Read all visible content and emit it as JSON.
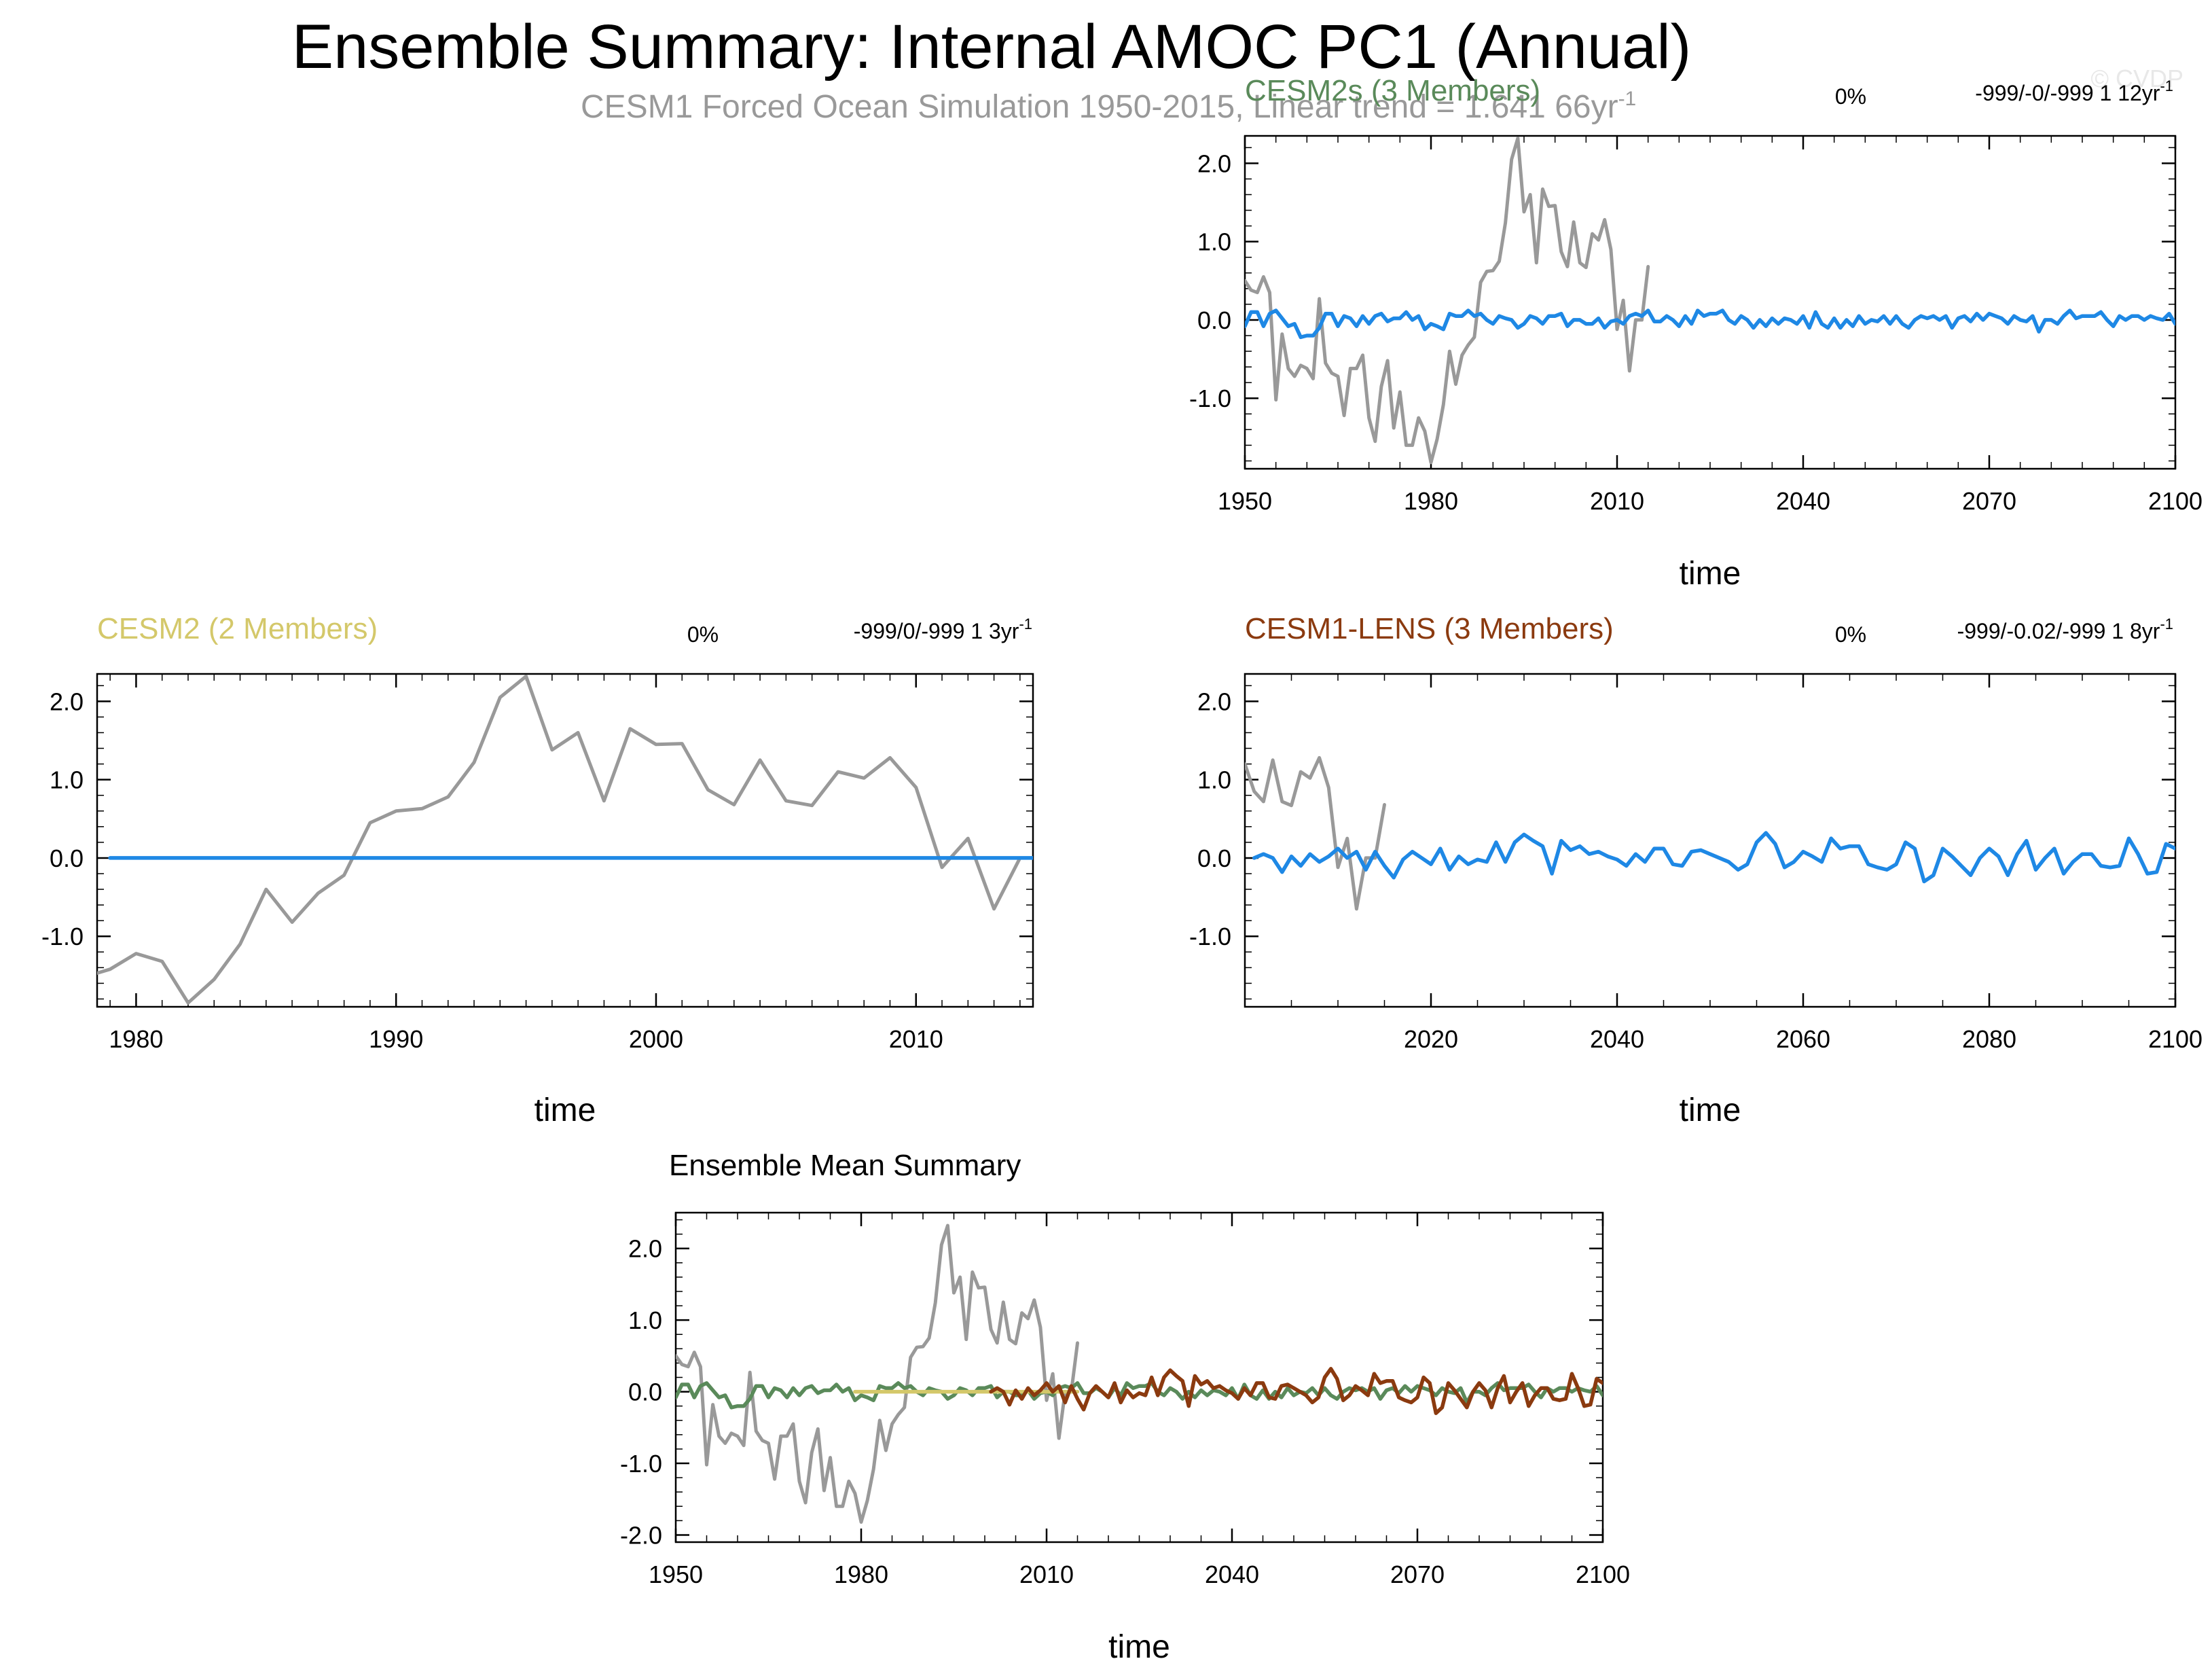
{
  "page": {
    "title": "Ensemble Summary: Internal AMOC PC1 (Annual)",
    "subtitle": "CESM1 Forced Ocean Simulation 1950-2015, Linear trend = 1.641 66yr",
    "subtitle_sup": "-1",
    "watermark": "© CVDP"
  },
  "colors": {
    "observed": "#999999",
    "cesm2s": "#1e88e5",
    "cesm2": "#1e88e5",
    "cesm1_lens": "#1e88e5",
    "mean_cesm2s": "#5a8a5a",
    "mean_cesm2": "#d4c86a",
    "mean_cesm1_lens": "#8b3a0f",
    "cesm2s_title": "#5a8a5a",
    "cesm2_title": "#d4c86a",
    "cesm1_lens_title": "#8b3a0f"
  },
  "chart_data": [
    {
      "id": "cesm2s",
      "type": "line",
      "title": "CESM2s (3 Members)",
      "pct": "0%",
      "stats": "-999/-0/-999 1 12yr",
      "stats_sup": "-1",
      "xlabel": "time",
      "xlim": [
        1950,
        2100
      ],
      "ylim": [
        -1.9,
        2.35
      ],
      "xticks": [
        "1950",
        "1980",
        "2010",
        "2040",
        "2070",
        "2100"
      ],
      "yticks": [
        "2.0",
        "1.0",
        "0.0",
        "-1.0"
      ],
      "series": [
        {
          "key": "observed",
          "x_start": 1950,
          "values": [
            0.5,
            0.38,
            0.35,
            0.55,
            0.35,
            -1.02,
            -0.18,
            -0.62,
            -0.72,
            -0.58,
            -0.62,
            -0.75,
            0.27,
            -0.55,
            -0.68,
            -0.72,
            -1.22,
            -0.62,
            -0.62,
            -0.45,
            -1.25,
            -1.55,
            -0.85,
            -0.52,
            -1.38,
            -0.92,
            -1.6,
            -1.6,
            -1.25,
            -1.42,
            -1.82,
            -1.52,
            -1.08,
            -0.4,
            -0.82,
            -0.45,
            -0.32,
            -0.22,
            0.48,
            0.62,
            0.63,
            0.75,
            1.24,
            2.05,
            2.32,
            1.38,
            1.6,
            0.73,
            1.67,
            1.45,
            1.46,
            0.87,
            0.68,
            1.25,
            0.73,
            0.67,
            1.1,
            1.02,
            1.28,
            0.9,
            -0.12,
            0.25,
            -0.65,
            0.0,
            0.0,
            0.68
          ]
        },
        {
          "key": "cesm2s",
          "x_start": 1950,
          "values": [
            -0.08,
            0.1,
            0.1,
            -0.08,
            0.08,
            0.12,
            0.02,
            -0.08,
            -0.05,
            -0.22,
            -0.2,
            -0.2,
            -0.1,
            0.08,
            0.08,
            -0.08,
            0.05,
            0.02,
            -0.08,
            0.05,
            -0.05,
            0.05,
            0.08,
            -0.02,
            0.02,
            0.02,
            0.1,
            0.0,
            0.05,
            -0.12,
            -0.05,
            -0.08,
            -0.12,
            0.08,
            0.05,
            0.05,
            0.12,
            0.05,
            0.08,
            0.0,
            -0.05,
            0.05,
            0.02,
            0.0,
            -0.1,
            -0.05,
            0.05,
            0.02,
            -0.05,
            0.05,
            0.05,
            0.08,
            -0.08,
            0.0,
            0.0,
            -0.05,
            -0.05,
            0.02,
            -0.1,
            -0.02,
            0.0,
            -0.05,
            0.05,
            0.08,
            0.05,
            0.12,
            -0.02,
            -0.02,
            0.05,
            0.0,
            -0.08,
            0.05,
            -0.05,
            0.12,
            0.05,
            0.08,
            0.08,
            0.12,
            0.0,
            -0.05,
            0.05,
            0.0,
            -0.1,
            0.0,
            -0.08,
            0.02,
            -0.05,
            0.02,
            0.0,
            -0.05,
            0.05,
            -0.1,
            0.1,
            -0.05,
            -0.1,
            0.02,
            -0.1,
            0.0,
            -0.08,
            0.05,
            -0.05,
            0.0,
            -0.02,
            0.05,
            -0.05,
            0.05,
            -0.05,
            -0.1,
            0.0,
            0.05,
            0.02,
            0.05,
            0.0,
            0.05,
            -0.1,
            0.02,
            0.05,
            -0.02,
            0.08,
            0.0,
            0.08,
            0.05,
            0.02,
            -0.05,
            0.05,
            0.0,
            -0.02,
            0.05,
            -0.15,
            0.0,
            0.0,
            -0.05,
            0.05,
            0.12,
            0.02,
            0.05,
            0.05,
            0.05,
            0.1,
            0.0,
            -0.08,
            0.05,
            0.0,
            0.05,
            0.05,
            0.0,
            0.05,
            0.02,
            0.0,
            0.08,
            -0.05,
            0.0,
            0.1,
            0.15,
            0.02
          ]
        }
      ]
    },
    {
      "id": "cesm2",
      "type": "line",
      "title": "CESM2 (2 Members)",
      "pct": "0%",
      "stats": "-999/0/-999 1 3yr",
      "stats_sup": "-1",
      "xlabel": "time",
      "xlim": [
        1978.5,
        2014.5
      ],
      "ylim": [
        -1.9,
        2.35
      ],
      "xticks": [
        "1980",
        "1990",
        "2000",
        "2010"
      ],
      "yticks": [
        "2.0",
        "1.0",
        "0.0",
        "-1.0"
      ],
      "series": [
        {
          "key": "observed",
          "x_start": 1978,
          "values": [
            -1.52,
            -1.42,
            -1.22,
            -1.32,
            -1.85,
            -1.55,
            -1.1,
            -0.4,
            -0.82,
            -0.45,
            -0.22,
            0.45,
            0.6,
            0.63,
            0.78,
            1.22,
            2.05,
            2.32,
            1.38,
            1.6,
            0.73,
            1.65,
            1.45,
            1.46,
            0.87,
            0.68,
            1.25,
            0.73,
            0.67,
            1.1,
            1.02,
            1.28,
            0.9,
            -0.12,
            0.25,
            -0.65,
            0.0,
            0.0,
            0.68
          ]
        },
        {
          "key": "cesm2",
          "x_start": 1979,
          "values": [
            0,
            0,
            0,
            0,
            0,
            0,
            0,
            0,
            0,
            0,
            0,
            0,
            0,
            0,
            0,
            0,
            0,
            0,
            0,
            0,
            0,
            0,
            0,
            0,
            0,
            0,
            0,
            0,
            0,
            0,
            0,
            0,
            0,
            0,
            0,
            0,
            0
          ]
        }
      ]
    },
    {
      "id": "cesm1_lens",
      "type": "line",
      "title": "CESM1-LENS (3 Members)",
      "pct": "0%",
      "stats": "-999/-0.02/-999 1 8yr",
      "stats_sup": "-1",
      "xlabel": "time",
      "xlim": [
        2000,
        2100
      ],
      "ylim": [
        -1.9,
        2.35
      ],
      "xticks": [
        "2020",
        "2040",
        "2060",
        "2080",
        "2100"
      ],
      "yticks": [
        "2.0",
        "1.0",
        "0.0",
        "-1.0"
      ],
      "series": [
        {
          "key": "observed",
          "x_start": 2000,
          "values": [
            1.2,
            0.85,
            0.72,
            1.25,
            0.72,
            0.67,
            1.1,
            1.02,
            1.28,
            0.9,
            -0.12,
            0.25,
            -0.65,
            0.0,
            0.0,
            0.68
          ]
        },
        {
          "key": "cesm1_lens",
          "x_start": 2001,
          "values": [
            0.0,
            0.05,
            0.0,
            -0.18,
            0.02,
            -0.1,
            0.05,
            -0.05,
            0.02,
            0.12,
            0.0,
            0.08,
            -0.15,
            0.08,
            -0.1,
            -0.25,
            -0.02,
            0.08,
            0.0,
            -0.08,
            0.12,
            -0.15,
            0.02,
            -0.08,
            -0.02,
            -0.05,
            0.2,
            -0.05,
            0.2,
            0.3,
            0.22,
            0.15,
            -0.2,
            0.22,
            0.1,
            0.15,
            0.05,
            0.08,
            0.02,
            -0.02,
            -0.1,
            0.05,
            -0.05,
            0.12,
            0.12,
            -0.08,
            -0.1,
            0.08,
            0.1,
            0.05,
            0.0,
            -0.05,
            -0.15,
            -0.08,
            0.2,
            0.32,
            0.18,
            -0.12,
            -0.05,
            0.08,
            0.02,
            -0.05,
            0.25,
            0.12,
            0.15,
            0.15,
            -0.08,
            -0.12,
            -0.15,
            -0.08,
            0.2,
            0.12,
            -0.3,
            -0.22,
            0.12,
            0.02,
            -0.1,
            -0.22,
            0.0,
            0.12,
            0.02,
            -0.22,
            0.05,
            0.22,
            -0.15,
            0.0,
            0.12,
            -0.2,
            -0.05,
            0.05,
            0.05,
            -0.1,
            -0.12,
            -0.1,
            0.25,
            0.05,
            -0.2,
            -0.18,
            0.18,
            0.12
          ]
        }
      ]
    },
    {
      "id": "ensemble_mean",
      "type": "line",
      "title": "Ensemble Mean Summary",
      "xlabel": "time",
      "xlim": [
        1950,
        2100
      ],
      "ylim": [
        -2.1,
        2.5
      ],
      "xticks": [
        "1950",
        "1980",
        "2010",
        "2040",
        "2070",
        "2100"
      ],
      "yticks": [
        "2.0",
        "1.0",
        "0.0",
        "-1.0",
        "-2.0"
      ],
      "series": [
        {
          "key": "observed",
          "x_start": 1950,
          "values": [
            0.5,
            0.38,
            0.35,
            0.55,
            0.35,
            -1.02,
            -0.18,
            -0.62,
            -0.72,
            -0.58,
            -0.62,
            -0.75,
            0.27,
            -0.55,
            -0.68,
            -0.72,
            -1.22,
            -0.62,
            -0.62,
            -0.45,
            -1.25,
            -1.55,
            -0.85,
            -0.52,
            -1.38,
            -0.92,
            -1.6,
            -1.6,
            -1.25,
            -1.42,
            -1.82,
            -1.52,
            -1.08,
            -0.4,
            -0.82,
            -0.45,
            -0.32,
            -0.22,
            0.48,
            0.62,
            0.63,
            0.75,
            1.24,
            2.05,
            2.32,
            1.38,
            1.6,
            0.73,
            1.67,
            1.45,
            1.46,
            0.87,
            0.68,
            1.25,
            0.73,
            0.67,
            1.1,
            1.02,
            1.28,
            0.9,
            -0.12,
            0.25,
            -0.65,
            0.0,
            0.0,
            0.68
          ]
        },
        {
          "key": "mean_cesm2s",
          "x_start": 1950,
          "values": [
            -0.08,
            0.1,
            0.1,
            -0.08,
            0.08,
            0.12,
            0.02,
            -0.08,
            -0.05,
            -0.22,
            -0.2,
            -0.2,
            -0.1,
            0.08,
            0.08,
            -0.08,
            0.05,
            0.02,
            -0.08,
            0.05,
            -0.05,
            0.05,
            0.08,
            -0.02,
            0.02,
            0.02,
            0.1,
            0.0,
            0.05,
            -0.12,
            -0.05,
            -0.08,
            -0.12,
            0.08,
            0.05,
            0.05,
            0.12,
            0.05,
            0.08,
            0.0,
            -0.05,
            0.05,
            0.02,
            0.0,
            -0.1,
            -0.05,
            0.05,
            0.02,
            -0.05,
            0.05,
            0.05,
            0.08,
            -0.08,
            0.0,
            0.0,
            -0.05,
            -0.05,
            0.02,
            -0.1,
            -0.02,
            0.0,
            -0.05,
            0.05,
            0.08,
            0.05,
            0.12,
            -0.02,
            -0.02,
            0.05,
            0.0,
            -0.08,
            0.05,
            -0.05,
            0.12,
            0.05,
            0.08,
            0.08,
            0.12,
            0.0,
            -0.05,
            0.05,
            0.0,
            -0.1,
            0.0,
            -0.08,
            0.02,
            -0.05,
            0.02,
            0.0,
            -0.05,
            0.05,
            -0.1,
            0.1,
            -0.05,
            -0.1,
            0.02,
            -0.1,
            0.0,
            -0.08,
            0.05,
            -0.05,
            0.0,
            -0.02,
            0.05,
            -0.05,
            0.05,
            -0.05,
            -0.1,
            0.0,
            0.05,
            0.02,
            0.05,
            0.0,
            0.05,
            -0.1,
            0.02,
            0.05,
            -0.02,
            0.08,
            0.0,
            0.08,
            0.05,
            0.02,
            -0.05,
            0.05,
            0.0,
            -0.02,
            0.05,
            -0.15,
            0.0,
            0.0,
            -0.05,
            0.05,
            0.12,
            0.02,
            0.05,
            0.05,
            0.05,
            0.1,
            0.0,
            -0.08,
            0.05,
            0.0,
            0.05,
            0.05,
            0.0,
            0.05,
            0.02,
            0.0,
            0.08,
            -0.05,
            0.0,
            0.1,
            0.15,
            0.02
          ]
        },
        {
          "key": "mean_cesm2",
          "x_start": 1979,
          "values": [
            0,
            0,
            0,
            0,
            0,
            0,
            0,
            0,
            0,
            0,
            0,
            0,
            0,
            0,
            0,
            0,
            0,
            0,
            0,
            0,
            0,
            0,
            0,
            0,
            0,
            0,
            0,
            0,
            0,
            0,
            0,
            0,
            0,
            0,
            0,
            0,
            0
          ]
        },
        {
          "key": "mean_cesm1_lens",
          "x_start": 2001,
          "values": [
            0.0,
            0.05,
            0.0,
            -0.18,
            0.02,
            -0.1,
            0.05,
            -0.05,
            0.02,
            0.12,
            0.0,
            0.08,
            -0.15,
            0.08,
            -0.1,
            -0.25,
            -0.02,
            0.08,
            0.0,
            -0.08,
            0.12,
            -0.15,
            0.02,
            -0.08,
            -0.02,
            -0.05,
            0.2,
            -0.05,
            0.2,
            0.3,
            0.22,
            0.15,
            -0.2,
            0.22,
            0.1,
            0.15,
            0.05,
            0.08,
            0.02,
            -0.02,
            -0.1,
            0.05,
            -0.05,
            0.12,
            0.12,
            -0.08,
            -0.1,
            0.08,
            0.1,
            0.05,
            0.0,
            -0.05,
            -0.15,
            -0.08,
            0.2,
            0.32,
            0.18,
            -0.12,
            -0.05,
            0.08,
            0.02,
            -0.05,
            0.25,
            0.12,
            0.15,
            0.15,
            -0.08,
            -0.12,
            -0.15,
            -0.08,
            0.2,
            0.12,
            -0.3,
            -0.22,
            0.12,
            0.02,
            -0.1,
            -0.22,
            0.0,
            0.12,
            0.02,
            -0.22,
            0.05,
            0.22,
            -0.15,
            0.0,
            0.12,
            -0.2,
            -0.05,
            0.05,
            0.05,
            -0.1,
            -0.12,
            -0.1,
            0.25,
            0.05,
            -0.2,
            -0.18,
            0.18,
            0.12
          ]
        }
      ]
    }
  ]
}
